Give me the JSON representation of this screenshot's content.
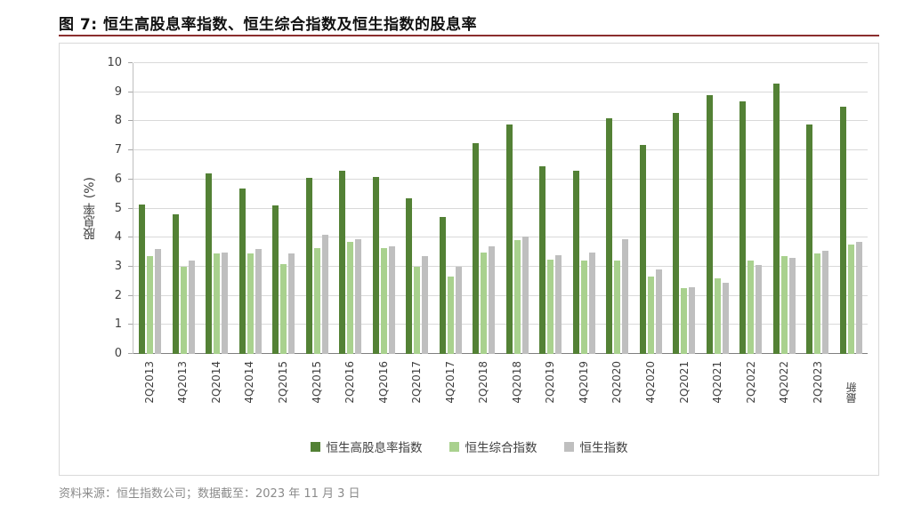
{
  "title": "图 7: 恒生高股息率指数、恒生综合指数及恒生指数的股息率",
  "footer": "资料来源：恒生指数公司；数据截至：2023 年 11 月 3 日",
  "colors": {
    "title_rule": "#8b2e2e",
    "frame_border": "#d9d9d9",
    "gridline": "#d9d9d9",
    "axis_line": "#7f7f7f",
    "tick_text": "#3f3f3f",
    "footer_text": "#8a8a8a",
    "series_dark_green": "#538135",
    "series_light_green": "#a9d18e",
    "series_gray": "#bfbfbf"
  },
  "chart_data": {
    "type": "bar",
    "title": "图 7: 恒生高股息率指数、恒生综合指数及恒生指数的股息率",
    "xlabel": "",
    "ylabel": "股息率 (%)",
    "ylim": [
      0,
      10
    ],
    "yticks": [
      0,
      1,
      2,
      3,
      4,
      5,
      6,
      7,
      8,
      9,
      10
    ],
    "grid": true,
    "legend_position": "bottom",
    "categories": [
      "2Q2013",
      "4Q2013",
      "2Q2014",
      "4Q2014",
      "2Q2015",
      "4Q2015",
      "2Q2016",
      "4Q2016",
      "2Q2017",
      "4Q2017",
      "2Q2018",
      "4Q2018",
      "2Q2019",
      "4Q2019",
      "2Q2020",
      "4Q2020",
      "2Q2021",
      "4Q2021",
      "2Q2022",
      "4Q2022",
      "2Q2023",
      "最新"
    ],
    "series": [
      {
        "key": "hs-high-dividend-yield-index",
        "name": "恒生高股息率指数",
        "color": "#538135",
        "values": [
          5.15,
          4.8,
          6.2,
          5.7,
          5.1,
          6.05,
          6.3,
          6.1,
          5.35,
          4.7,
          7.25,
          7.9,
          6.45,
          6.3,
          8.1,
          7.2,
          8.3,
          8.9,
          8.7,
          9.3,
          7.9,
          8.5
        ]
      },
      {
        "key": "hs-composite-index",
        "name": "恒生综合指数",
        "color": "#a9d18e",
        "values": [
          3.35,
          3.0,
          3.45,
          3.45,
          3.1,
          3.65,
          3.85,
          3.65,
          3.0,
          2.65,
          3.5,
          3.9,
          3.25,
          3.2,
          3.2,
          2.65,
          2.25,
          2.6,
          3.2,
          3.35,
          3.45,
          3.75
        ]
      },
      {
        "key": "hs-index",
        "name": "恒生指数",
        "color": "#bfbfbf",
        "values": [
          3.6,
          3.2,
          3.5,
          3.6,
          3.45,
          4.1,
          3.95,
          3.7,
          3.35,
          3.0,
          3.7,
          4.05,
          3.4,
          3.5,
          3.95,
          2.9,
          2.3,
          2.45,
          3.05,
          3.3,
          3.55,
          3.85
        ]
      }
    ]
  }
}
